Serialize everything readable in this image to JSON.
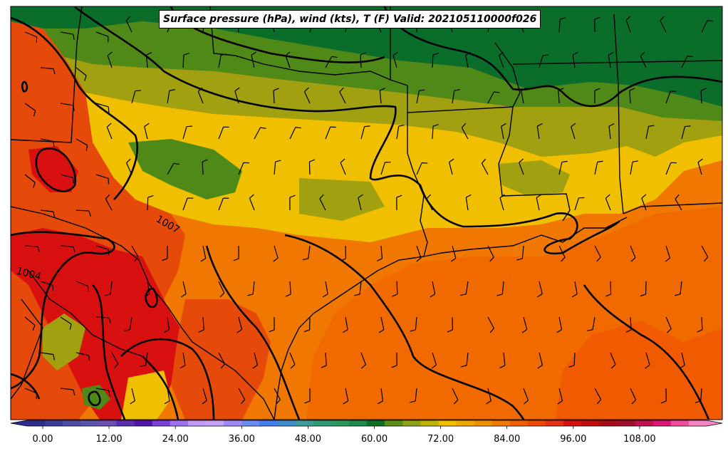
{
  "title": "Surface pressure (hPa), wind (kts), T (F) Valid: 202105110000f026",
  "isobar_labels": [
    "1007",
    "1004"
  ],
  "colorbar": {
    "ticks": [
      "0.00",
      "12.00",
      "24.00",
      "36.00",
      "48.00",
      "60.00",
      "72.00",
      "84.00",
      "96.00",
      "108.00"
    ],
    "colors": [
      "#2e2d8f",
      "#3d3d9e",
      "#4b4ba8",
      "#5a54b0",
      "#6a4fb6",
      "#5a2eb0",
      "#5212b0",
      "#7a3ee0",
      "#a070f0",
      "#c49af8",
      "#c8a0f8",
      "#9f88f8",
      "#6b8cf7",
      "#3f7ff0",
      "#3d8ccd",
      "#3c9c9a",
      "#2d9a78",
      "#2a9a5c",
      "#1c8a48",
      "#0a7028",
      "#5a8f14",
      "#8fa414",
      "#c0b400",
      "#f0c000",
      "#f0a800",
      "#f09000",
      "#f07800",
      "#f06000",
      "#f04800",
      "#e63016",
      "#d81010",
      "#c00c0c",
      "#a80a18",
      "#a0102a",
      "#c01050",
      "#e01478",
      "#f04ca0",
      "#f884c8"
    ]
  },
  "map": {
    "legend": "temperature shading (F), isobars (hPa), wind barbs (kts)"
  }
}
